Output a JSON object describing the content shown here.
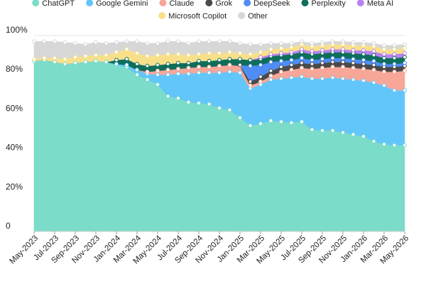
{
  "chart_data": {
    "type": "area",
    "stacked": true,
    "x": [
      "2023-05",
      "2023-06",
      "2023-07",
      "2023-08",
      "2023-09",
      "2023-10",
      "2023-11",
      "2023-12",
      "2024-01",
      "2024-02",
      "2024-03",
      "2024-04",
      "2024-05",
      "2024-06",
      "2024-07",
      "2024-08",
      "2024-09",
      "2024-10",
      "2024-11",
      "2024-12",
      "2025-01",
      "2025-02",
      "2025-03",
      "2025-04",
      "2025-05",
      "2025-06",
      "2025-07",
      "2025-08",
      "2025-09",
      "2025-10",
      "2025-11",
      "2025-12",
      "2026-01",
      "2026-02",
      "2026-03",
      "2026-04",
      "2026-05"
    ],
    "x_tick_labels": [
      "May-2023",
      "Jul-2023",
      "Sep-2023",
      "Nov-2023",
      "Jan-2024",
      "Mar-2024",
      "May-2024",
      "Jul-2024",
      "Sep-2024",
      "Nov-2024",
      "Jan-2025",
      "Mar-2025",
      "May-2025",
      "Jul-2025",
      "Sep-2025",
      "Nov-2025",
      "Jan-2026",
      "Mar-2026",
      "May-2026"
    ],
    "y_tick_labels": [
      "0",
      "20%",
      "40%",
      "60%",
      "80%",
      "100%"
    ],
    "ylim": [
      0,
      100
    ],
    "grid": true,
    "legend_position": "top",
    "series": [
      {
        "name": "ChatGPT",
        "color": "#7bdcc9",
        "values": [
          87,
          87.5,
          86.5,
          85.5,
          86,
          86.5,
          87,
          86.5,
          85,
          84,
          80,
          77.5,
          75,
          69,
          68,
          66,
          65.5,
          65,
          63,
          62,
          58,
          54,
          55,
          56.5,
          56,
          55.5,
          56,
          52,
          51.5,
          51.5,
          50.5,
          49.5,
          48.5,
          46,
          44.5,
          44,
          44
        ]
      },
      {
        "name": "Google Gemini",
        "color": "#63c6fa",
        "values": [
          0,
          0,
          0,
          0,
          0,
          0,
          0,
          0,
          0.5,
          1,
          2.5,
          3,
          5,
          11,
          12.5,
          14.5,
          15.5,
          16,
          18,
          19.5,
          23,
          19,
          20,
          21,
          22,
          23,
          23,
          26,
          26.5,
          27,
          27.5,
          28,
          28.5,
          30,
          30,
          28,
          28
        ]
      },
      {
        "name": "Claude",
        "color": "#f8a697",
        "values": [
          0,
          0,
          0,
          0,
          0,
          0,
          0,
          0,
          0,
          0,
          0,
          1,
          2,
          2.5,
          2.5,
          3,
          3,
          3,
          3.5,
          3.5,
          3.5,
          1.5,
          1.5,
          2,
          3.5,
          4,
          4.5,
          5,
          5.5,
          5.5,
          6,
          6,
          6,
          6.5,
          7,
          9.5,
          10
        ]
      },
      {
        "name": "Grok",
        "color": "#4a4a4a",
        "values": [
          0,
          0,
          0,
          0,
          0,
          0,
          0,
          0,
          0,
          0,
          0,
          0,
          0,
          0,
          0,
          0,
          0,
          0,
          0,
          0,
          0.5,
          2,
          2.5,
          2.5,
          2.5,
          2.5,
          2.5,
          2.5,
          2.5,
          2.5,
          2.5,
          2.5,
          2.5,
          2.5,
          2.5,
          2.5,
          2.5
        ]
      },
      {
        "name": "DeepSeek",
        "color": "#4e8df5",
        "values": [
          0,
          0,
          0,
          0,
          0,
          0,
          0,
          0,
          0,
          0,
          0,
          0,
          0,
          0,
          0,
          0,
          0,
          0,
          0,
          0,
          0,
          8,
          6,
          4.5,
          3,
          2.5,
          2.5,
          2,
          2,
          2,
          2,
          2,
          2,
          2,
          1.5,
          1.5,
          1.5
        ]
      },
      {
        "name": "Perplexity",
        "color": "#0e6e5a",
        "values": [
          0,
          0,
          0,
          0,
          0,
          0,
          0,
          0,
          2,
          3,
          3,
          3,
          3,
          3,
          3,
          2.5,
          3,
          3,
          3,
          3,
          3,
          3,
          3,
          3,
          3,
          3,
          3,
          3,
          3,
          3,
          3,
          3,
          3,
          3,
          3,
          3,
          3
        ]
      },
      {
        "name": "Meta AI",
        "color": "#b982f0",
        "values": [
          0,
          0,
          0,
          0,
          0,
          0,
          0,
          0,
          0,
          0,
          0,
          0,
          0,
          0,
          0,
          0,
          0,
          0,
          0,
          0,
          0,
          0,
          1,
          1,
          1,
          1,
          1.5,
          1.5,
          1.5,
          1.5,
          1.5,
          1.5,
          2,
          2,
          2,
          2,
          2
        ]
      },
      {
        "name": "Microsoft Copilot",
        "color": "#f8e08a",
        "values": [
          1,
          1,
          2,
          2.5,
          3,
          3,
          3,
          3.5,
          4,
          5,
          5.5,
          5,
          5,
          5,
          4.5,
          4,
          3.5,
          4,
          3.5,
          3.5,
          3,
          3,
          2.5,
          2.5,
          2.5,
          2.5,
          2.5,
          2.5,
          2.5,
          2.5,
          2.5,
          2.5,
          2.5,
          2.5,
          2.5,
          2.5,
          2.5
        ]
      },
      {
        "name": "Other",
        "color": "#d7d7d7",
        "values": [
          9,
          8.5,
          8.5,
          8.5,
          7,
          6,
          6.5,
          6,
          5,
          4,
          6,
          6.5,
          6,
          6.5,
          6.5,
          6,
          6.5,
          6,
          6,
          5.5,
          5,
          5,
          4,
          3,
          2.5,
          2,
          1.5,
          1.5,
          1.5,
          1.5,
          1.5,
          1.5,
          1.5,
          1.5,
          2,
          2,
          2
        ]
      }
    ]
  }
}
